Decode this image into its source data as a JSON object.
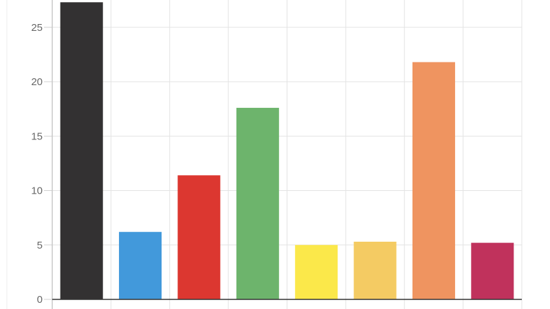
{
  "chart_data": {
    "type": "bar",
    "title": "",
    "xlabel": "",
    "ylabel": "",
    "categories": [
      "",
      "",
      "",
      "",
      "",
      "",
      "",
      ""
    ],
    "values": [
      27.3,
      6.2,
      11.4,
      17.6,
      5.0,
      5.3,
      21.8,
      5.2
    ],
    "colors": [
      "#333132",
      "#4299db",
      "#dc3730",
      "#6db46c",
      "#fbe84a",
      "#f4cb63",
      "#ef9460",
      "#c0325c"
    ],
    "ylim": [
      0,
      27.5
    ],
    "yticks": [
      0,
      5,
      10,
      15,
      20,
      25
    ],
    "ytick_labels": [
      "0",
      "5",
      "10",
      "15",
      "20",
      "25"
    ],
    "grid": true,
    "legend": "none"
  }
}
